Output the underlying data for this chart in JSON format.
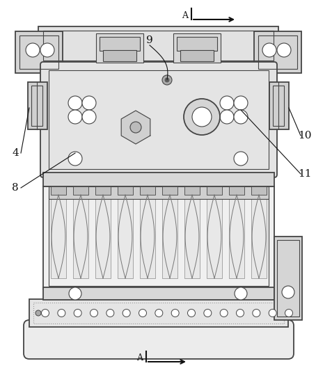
{
  "bg_color": "#ffffff",
  "lc": "#444444",
  "dc": "#111111",
  "figsize": [
    4.54,
    5.29
  ],
  "dpi": 100,
  "xlim": [
    0,
    454
  ],
  "ylim": [
    0,
    529
  ]
}
